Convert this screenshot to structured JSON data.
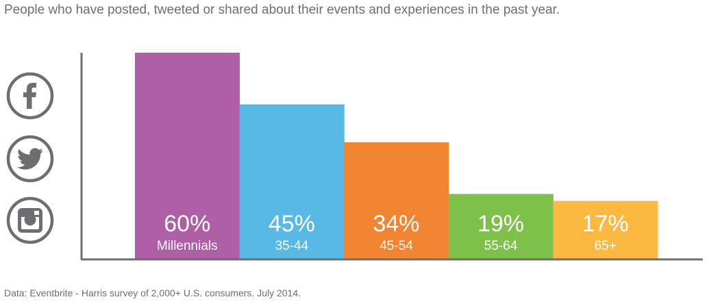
{
  "header": {
    "subtitle": "People who have posted, tweeted or shared about their events and experiences in the past year."
  },
  "social_icons": [
    {
      "name": "facebook-icon",
      "color": "#6d6e71"
    },
    {
      "name": "twitter-icon",
      "color": "#6d6e71"
    },
    {
      "name": "instagram-icon",
      "color": "#6d6e71"
    }
  ],
  "chart_data": {
    "type": "bar",
    "categories": [
      "Millennials",
      "35-44",
      "45-54",
      "55-64",
      "65+"
    ],
    "values": [
      60,
      45,
      34,
      19,
      17
    ],
    "value_labels": [
      "60%",
      "45%",
      "34%",
      "19%",
      "17%"
    ],
    "colors": [
      "#ae5fa5",
      "#58b9e6",
      "#f28532",
      "#7dc04a",
      "#fbb942"
    ],
    "ylim": [
      0,
      60
    ],
    "grid": false,
    "axis_color": "#6d6e71"
  },
  "footer": {
    "source": "Data: Eventbrite - Harris survey of 2,000+ U.S. consumers. July 2014."
  }
}
